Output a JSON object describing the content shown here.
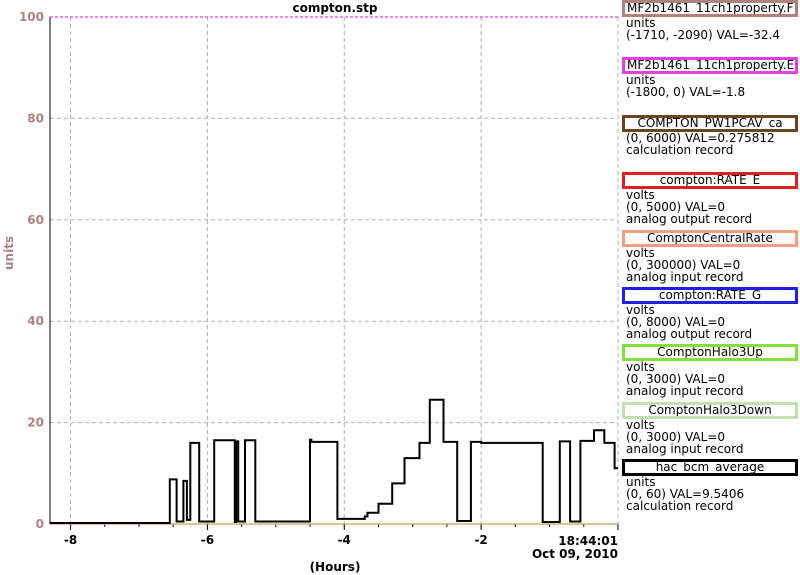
{
  "title": "compton.stp",
  "ylabel": "units",
  "xlabel": "(Hours)",
  "timestamp": {
    "time": "18:44:01",
    "date": "Oct 09, 2010"
  },
  "legend": [
    {
      "name": "MF2b1461_11ch1property.F",
      "color": "#b08080",
      "align": "left",
      "lines": [
        "units",
        "(-1710, -2090) VAL=-32.4"
      ]
    },
    {
      "name": "MF2b1461_11ch1property.E",
      "color": "#e040e0",
      "align": "left",
      "lines": [
        "units",
        "(-1800, 0)  VAL=-1.8"
      ]
    },
    {
      "name": "COMPTON_PW1PCAV_ca",
      "color": "#6b4420",
      "align": "center",
      "lines": [
        "(0, 6000) VAL=0.275812",
        "calculation record"
      ]
    },
    {
      "name": "compton:RATE_E",
      "color": "#e02020",
      "align": "center",
      "lines": [
        "volts",
        "(0, 5000)  VAL=0",
        "analog output record"
      ]
    },
    {
      "name": "ComptonCentralRate",
      "color": "#f0a080",
      "align": "center",
      "lines": [
        "volts",
        "(0, 300000) VAL=0",
        "analog input record"
      ]
    },
    {
      "name": "compton:RATE_G",
      "color": "#2020e0",
      "align": "center",
      "lines": [
        "volts",
        "(0, 8000)  VAL=0",
        "analog output record"
      ]
    },
    {
      "name": "ComptonHalo3Up",
      "color": "#80e040",
      "align": "center",
      "lines": [
        "volts",
        "(0, 3000)  VAL=0",
        "analog input record"
      ]
    },
    {
      "name": "ComptonHalo3Down",
      "color": "#c0e0b0",
      "align": "center",
      "lines": [
        "volts",
        "(0, 3000)  VAL=0",
        "analog input record"
      ]
    },
    {
      "name": "hac_bcm_average",
      "color": "#000000",
      "align": "center",
      "lines": [
        "units",
        "(0, 60) VAL=9.5406",
        "calculation record"
      ]
    }
  ],
  "colors": {
    "axis_text": "#b08080",
    "grid": "#b0b0b0",
    "top_line": "#e040e0",
    "baseline": "#c0a060",
    "trace": "#000000"
  },
  "chart_data": {
    "type": "line",
    "title": "compton.stp",
    "xlabel": "(Hours)",
    "ylabel": "units",
    "xlim": [
      -8.3,
      0
    ],
    "ylim": [
      0,
      100
    ],
    "x_ticks": [
      -8,
      -6,
      -4,
      -2
    ],
    "x_tick_labels": [
      "-8",
      "-6",
      "-4",
      "-2"
    ],
    "y_ticks": [
      0,
      20,
      40,
      60,
      80,
      100
    ],
    "y_tick_labels": [
      "0",
      "20",
      "40",
      "60",
      "80",
      "100"
    ],
    "grid": true,
    "series": [
      {
        "name": "hac_bcm_average",
        "color": "#000000",
        "x": [
          -8.3,
          -6.55,
          -6.55,
          -6.45,
          -6.45,
          -6.35,
          -6.35,
          -6.3,
          -6.3,
          -6.25,
          -6.25,
          -6.12,
          -6.12,
          -5.9,
          -5.9,
          -5.6,
          -5.6,
          -5.58,
          -5.58,
          -5.55,
          -5.55,
          -5.45,
          -5.45,
          -5.3,
          -5.3,
          -4.5,
          -4.5,
          -4.48,
          -4.48,
          -4.1,
          -4.1,
          -3.7,
          -3.7,
          -3.66,
          -3.66,
          -3.5,
          -3.5,
          -3.3,
          -3.3,
          -3.12,
          -3.12,
          -2.9,
          -2.9,
          -2.75,
          -2.75,
          -2.55,
          -2.55,
          -2.35,
          -2.35,
          -2.15,
          -2.15,
          -2.0,
          -2.0,
          -1.1,
          -1.1,
          -0.85,
          -0.85,
          -0.7,
          -0.7,
          -0.55,
          -0.55,
          -0.35,
          -0.35,
          -0.2,
          -0.2,
          -0.05,
          -0.05,
          0
        ],
        "y": [
          0.2,
          0.2,
          8.8,
          8.8,
          0.5,
          0.5,
          8.5,
          8.5,
          0.8,
          0.8,
          16.0,
          16.0,
          0.5,
          0.5,
          16.5,
          16.5,
          0.4,
          0.4,
          16.3,
          16.3,
          0.5,
          0.5,
          16.5,
          16.5,
          0.5,
          0.5,
          16.6,
          16.6,
          16.2,
          16.2,
          1.0,
          1.0,
          1.5,
          1.5,
          2.2,
          2.2,
          4.0,
          4.0,
          8.0,
          8.0,
          13.0,
          13.0,
          16.0,
          16.0,
          24.5,
          24.5,
          16.2,
          16.2,
          0.6,
          0.6,
          16.2,
          16.2,
          16.0,
          16.0,
          0.4,
          0.4,
          16.3,
          16.3,
          0.5,
          0.5,
          16.4,
          16.4,
          18.5,
          18.5,
          16.0,
          16.0,
          11.0,
          11.0
        ]
      },
      {
        "name": "",
        "color": "#c0a060",
        "x": [
          -8.3,
          0
        ],
        "y": [
          0,
          0
        ]
      },
      {
        "name": "",
        "color": "#e040e0",
        "x": [
          -8.3,
          0
        ],
        "y": [
          100,
          100
        ]
      }
    ]
  }
}
